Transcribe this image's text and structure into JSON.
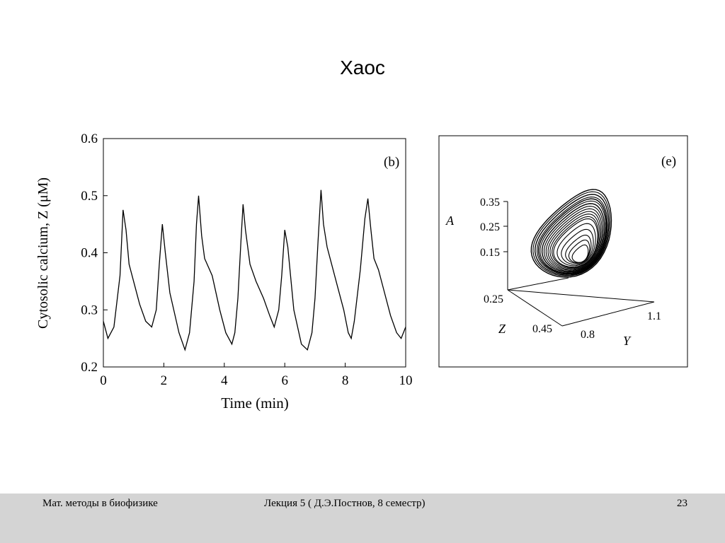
{
  "slide": {
    "title": "Хаос"
  },
  "footer": {
    "course": "Мат. методы в биофизике",
    "lecture": "Лекция 5 ( Д.Э.Постнов, 8 семестр)",
    "page_number": "23"
  },
  "chart_data": [
    {
      "type": "line",
      "panel_label": "(b)",
      "xlabel": "Time (min)",
      "ylabel": "Cytosolic calcium, Z (μM)",
      "xlim": [
        0,
        10
      ],
      "ylim": [
        0.2,
        0.6
      ],
      "x_ticks": [
        "0",
        "2",
        "4",
        "6",
        "8",
        "10"
      ],
      "y_ticks": [
        "0.2",
        "0.3",
        "0.4",
        "0.5",
        "0.6"
      ],
      "series": [
        {
          "x": [
            0,
            0.15,
            0.35,
            0.55,
            0.65,
            0.75,
            0.85,
            1.0,
            1.2,
            1.4,
            1.6,
            1.75,
            1.85,
            1.95,
            2.05,
            2.2,
            2.5,
            2.7,
            2.85,
            3.0,
            3.08,
            3.15,
            3.25,
            3.35,
            3.6,
            3.85,
            4.05,
            4.25,
            4.35,
            4.45,
            4.55,
            4.62,
            4.7,
            4.85,
            5.05,
            5.3,
            5.5,
            5.65,
            5.8,
            5.9,
            6.0,
            6.1,
            6.3,
            6.55,
            6.75,
            6.9,
            7.0,
            7.1,
            7.2,
            7.28,
            7.4,
            7.55,
            7.75,
            7.95,
            8.1,
            8.2,
            8.3,
            8.5,
            8.65,
            8.75,
            8.85,
            8.95,
            9.1,
            9.3,
            9.5,
            9.7,
            9.85,
            10.0
          ],
          "y": [
            0.28,
            0.25,
            0.27,
            0.36,
            0.475,
            0.44,
            0.38,
            0.35,
            0.31,
            0.28,
            0.27,
            0.3,
            0.38,
            0.45,
            0.4,
            0.33,
            0.26,
            0.23,
            0.26,
            0.35,
            0.45,
            0.5,
            0.43,
            0.39,
            0.36,
            0.3,
            0.26,
            0.24,
            0.26,
            0.32,
            0.42,
            0.485,
            0.44,
            0.38,
            0.35,
            0.32,
            0.29,
            0.27,
            0.3,
            0.36,
            0.44,
            0.41,
            0.3,
            0.24,
            0.23,
            0.26,
            0.32,
            0.42,
            0.51,
            0.45,
            0.41,
            0.38,
            0.34,
            0.3,
            0.26,
            0.25,
            0.28,
            0.37,
            0.46,
            0.495,
            0.44,
            0.39,
            0.37,
            0.33,
            0.29,
            0.26,
            0.25,
            0.27
          ]
        }
      ]
    },
    {
      "type": "scatter",
      "panel_label": "(e)",
      "description": "3D chaotic attractor",
      "axes": {
        "A": {
          "label": "A",
          "ticks": [
            "0.35",
            "0.25",
            "0.15"
          ]
        },
        "Z": {
          "label": "Z",
          "ticks": [
            "0.25",
            "0.45"
          ]
        },
        "Y": {
          "label": "Y",
          "ticks": [
            "0.8",
            "1.1"
          ]
        }
      }
    }
  ]
}
